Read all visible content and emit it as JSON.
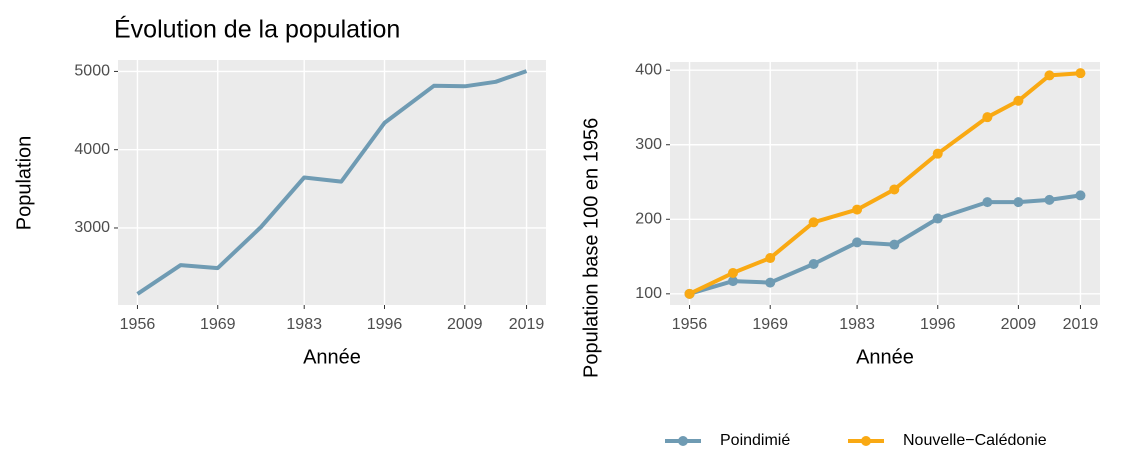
{
  "chart_data": [
    {
      "type": "line",
      "title": "Évolution de la population",
      "x_label": "Année",
      "y_label": "Population",
      "x": [
        1956,
        1963,
        1969,
        1976,
        1983,
        1989,
        1996,
        2004,
        2009,
        2014,
        2019
      ],
      "series": [
        {
          "name": "Poindimié",
          "color": "#6f9bb3",
          "values": [
            2158,
            2526,
            2487,
            3013,
            3645,
            3592,
            4342,
            4816,
            4810,
            4868,
            5004
          ]
        }
      ],
      "xlim": [
        1952.85,
        2022.15
      ],
      "xticks": [
        1956,
        1969,
        1983,
        1996,
        2009,
        2019
      ],
      "ylim": [
        2016,
        5146
      ],
      "yticks": [
        3000,
        4000,
        5000
      ],
      "grid": true,
      "markers": false
    },
    {
      "type": "line",
      "x_label": "Année",
      "y_label": "Population base 100 en 1956",
      "x": [
        1956,
        1963,
        1969,
        1976,
        1983,
        1989,
        1996,
        2004,
        2009,
        2014,
        2019
      ],
      "series": [
        {
          "name": "Poindimié",
          "color": "#6f9bb3",
          "values": [
            100,
            117,
            115,
            140,
            169,
            166,
            201,
            223,
            223,
            226,
            232
          ]
        },
        {
          "name": "Nouvelle−Calédonie",
          "color": "#f9a913",
          "values": [
            100,
            128,
            148,
            196,
            213,
            240,
            288,
            337,
            359,
            393,
            396
          ]
        }
      ],
      "xlim": [
        1952.85,
        2022.15
      ],
      "xticks": [
        1956,
        1969,
        1983,
        1996,
        2009,
        2019
      ],
      "ylim": [
        85,
        411
      ],
      "yticks": [
        100,
        200,
        300,
        400
      ],
      "grid": true,
      "markers": true,
      "legend": "bottom"
    }
  ]
}
